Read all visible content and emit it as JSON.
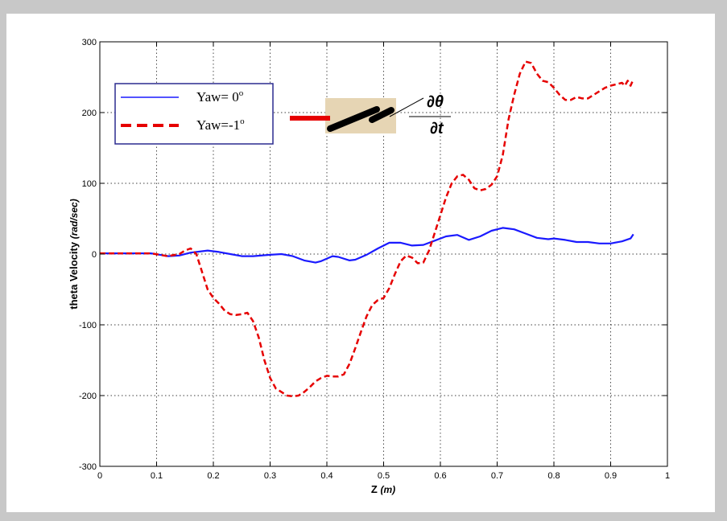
{
  "chart_data": {
    "type": "line",
    "xlabel": "Z",
    "xlabel_unit": "(m)",
    "ylabel": "theta Velocity",
    "ylabel_unit": "(rad/sec)",
    "xlim": [
      0,
      1
    ],
    "ylim": [
      -300,
      300
    ],
    "x_ticks": [
      0,
      0.1,
      0.2,
      0.3,
      0.4,
      0.5,
      0.6,
      0.7,
      0.8,
      0.9,
      1
    ],
    "y_ticks": [
      -300,
      -200,
      -100,
      0,
      100,
      200,
      300
    ],
    "grid": true,
    "legend_position": "top-left",
    "legend": [
      {
        "label": "Yaw= 0",
        "sup": "o"
      },
      {
        "label": "Yaw=-1",
        "sup": "o"
      }
    ],
    "inset": {
      "numerator": "∂θ",
      "denominator": "∂t"
    },
    "series": [
      {
        "name": "Yaw= 0°",
        "color": "#1a1aff",
        "style": "solid",
        "points": [
          [
            0.0,
            1
          ],
          [
            0.05,
            1
          ],
          [
            0.09,
            1
          ],
          [
            0.12,
            -3
          ],
          [
            0.14,
            -2
          ],
          [
            0.16,
            2
          ],
          [
            0.18,
            4
          ],
          [
            0.19,
            5
          ],
          [
            0.21,
            3
          ],
          [
            0.23,
            0
          ],
          [
            0.25,
            -3
          ],
          [
            0.27,
            -3
          ],
          [
            0.3,
            -1
          ],
          [
            0.32,
            0
          ],
          [
            0.34,
            -3
          ],
          [
            0.36,
            -9
          ],
          [
            0.38,
            -12
          ],
          [
            0.39,
            -10
          ],
          [
            0.41,
            -3
          ],
          [
            0.42,
            -4
          ],
          [
            0.44,
            -9
          ],
          [
            0.45,
            -8
          ],
          [
            0.47,
            -1
          ],
          [
            0.49,
            8
          ],
          [
            0.51,
            16
          ],
          [
            0.53,
            16
          ],
          [
            0.55,
            12
          ],
          [
            0.57,
            13
          ],
          [
            0.59,
            19
          ],
          [
            0.61,
            25
          ],
          [
            0.63,
            27
          ],
          [
            0.65,
            20
          ],
          [
            0.67,
            25
          ],
          [
            0.69,
            33
          ],
          [
            0.71,
            37
          ],
          [
            0.73,
            35
          ],
          [
            0.75,
            29
          ],
          [
            0.77,
            23
          ],
          [
            0.79,
            21
          ],
          [
            0.8,
            22
          ],
          [
            0.82,
            20
          ],
          [
            0.84,
            17
          ],
          [
            0.86,
            17
          ],
          [
            0.88,
            15
          ],
          [
            0.9,
            15
          ],
          [
            0.92,
            18
          ],
          [
            0.935,
            22
          ],
          [
            0.94,
            28
          ]
        ]
      },
      {
        "name": "Yaw=-1°",
        "color": "#e60000",
        "style": "dashed",
        "points": [
          [
            0.0,
            1
          ],
          [
            0.09,
            1
          ],
          [
            0.12,
            -3
          ],
          [
            0.14,
            0
          ],
          [
            0.15,
            5
          ],
          [
            0.16,
            8
          ],
          [
            0.17,
            0
          ],
          [
            0.18,
            -25
          ],
          [
            0.19,
            -50
          ],
          [
            0.2,
            -62
          ],
          [
            0.21,
            -70
          ],
          [
            0.22,
            -80
          ],
          [
            0.23,
            -85
          ],
          [
            0.24,
            -86
          ],
          [
            0.25,
            -85
          ],
          [
            0.26,
            -83
          ],
          [
            0.27,
            -95
          ],
          [
            0.28,
            -118
          ],
          [
            0.29,
            -150
          ],
          [
            0.3,
            -175
          ],
          [
            0.31,
            -190
          ],
          [
            0.32,
            -195
          ],
          [
            0.33,
            -200
          ],
          [
            0.34,
            -201
          ],
          [
            0.35,
            -200
          ],
          [
            0.36,
            -195
          ],
          [
            0.37,
            -188
          ],
          [
            0.38,
            -180
          ],
          [
            0.39,
            -175
          ],
          [
            0.4,
            -172
          ],
          [
            0.41,
            -173
          ],
          [
            0.42,
            -173
          ],
          [
            0.43,
            -170
          ],
          [
            0.44,
            -155
          ],
          [
            0.45,
            -133
          ],
          [
            0.46,
            -110
          ],
          [
            0.47,
            -88
          ],
          [
            0.48,
            -72
          ],
          [
            0.49,
            -65
          ],
          [
            0.5,
            -62
          ],
          [
            0.51,
            -48
          ],
          [
            0.52,
            -28
          ],
          [
            0.53,
            -10
          ],
          [
            0.54,
            -2
          ],
          [
            0.55,
            -5
          ],
          [
            0.56,
            -13
          ],
          [
            0.57,
            -12
          ],
          [
            0.58,
            5
          ],
          [
            0.59,
            30
          ],
          [
            0.6,
            55
          ],
          [
            0.61,
            80
          ],
          [
            0.62,
            100
          ],
          [
            0.63,
            110
          ],
          [
            0.64,
            112
          ],
          [
            0.65,
            105
          ],
          [
            0.66,
            93
          ],
          [
            0.67,
            90
          ],
          [
            0.68,
            92
          ],
          [
            0.69,
            98
          ],
          [
            0.7,
            110
          ],
          [
            0.71,
            140
          ],
          [
            0.72,
            190
          ],
          [
            0.73,
            225
          ],
          [
            0.74,
            255
          ],
          [
            0.75,
            272
          ],
          [
            0.76,
            270
          ],
          [
            0.77,
            255
          ],
          [
            0.78,
            245
          ],
          [
            0.79,
            243
          ],
          [
            0.8,
            235
          ],
          [
            0.81,
            225
          ],
          [
            0.82,
            218
          ],
          [
            0.83,
            218
          ],
          [
            0.84,
            222
          ],
          [
            0.85,
            220
          ],
          [
            0.86,
            220
          ],
          [
            0.87,
            225
          ],
          [
            0.88,
            230
          ],
          [
            0.89,
            235
          ],
          [
            0.9,
            238
          ],
          [
            0.91,
            240
          ],
          [
            0.92,
            242
          ],
          [
            0.925,
            238
          ],
          [
            0.93,
            245
          ],
          [
            0.935,
            238
          ],
          [
            0.94,
            247
          ]
        ]
      }
    ]
  }
}
